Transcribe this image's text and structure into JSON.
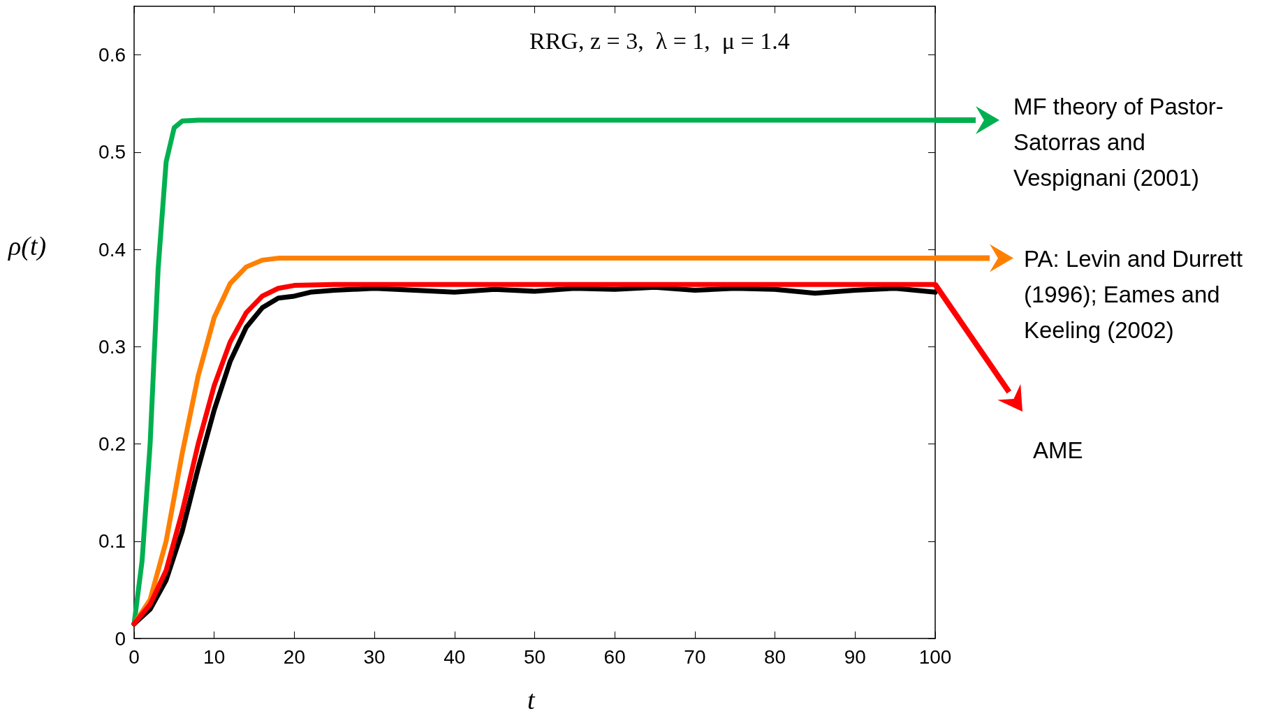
{
  "chart_data": {
    "type": "line",
    "xlabel": "t",
    "ylabel": "ρ(t)",
    "annotations": [
      "RRG, z = 3,  λ = 1,  μ = 1.4"
    ],
    "xlim": [
      0,
      100
    ],
    "xticks": [
      0,
      10,
      20,
      30,
      40,
      50,
      60,
      70,
      80,
      90,
      100
    ],
    "ylim": [
      0,
      0.65
    ],
    "yticks": [
      0,
      0.1,
      0.2,
      0.3,
      0.4,
      0.5,
      0.6
    ],
    "grid": false,
    "legend": "right",
    "marker": "none",
    "line_style": "solid",
    "series": [
      {
        "name": "MF theory of Pastor-Satorras and Vespignani  (2001)",
        "color": "#00b050",
        "x": [
          0,
          1,
          2,
          3,
          4,
          5,
          6,
          8,
          100
        ],
        "values": [
          0.015,
          0.08,
          0.2,
          0.38,
          0.49,
          0.525,
          0.532,
          0.533,
          0.533
        ]
      },
      {
        "name": "PA: Levin and Durrett (1996); Eames and Keeling  (2002)",
        "color": "#ff8000",
        "x": [
          0,
          2,
          4,
          6,
          8,
          10,
          12,
          14,
          16,
          18,
          100
        ],
        "values": [
          0.015,
          0.04,
          0.1,
          0.19,
          0.27,
          0.33,
          0.365,
          0.382,
          0.389,
          0.391,
          0.391
        ]
      },
      {
        "color": "#000000",
        "x": [
          0,
          2,
          4,
          6,
          8,
          10,
          12,
          14,
          16,
          18,
          20,
          22,
          25,
          30,
          35,
          40,
          45,
          50,
          55,
          60,
          65,
          70,
          75,
          80,
          85,
          90,
          95,
          100
        ],
        "values": [
          0.015,
          0.03,
          0.06,
          0.11,
          0.175,
          0.235,
          0.285,
          0.32,
          0.34,
          0.35,
          0.352,
          0.356,
          0.358,
          0.36,
          0.358,
          0.356,
          0.359,
          0.357,
          0.36,
          0.359,
          0.361,
          0.358,
          0.36,
          0.359,
          0.355,
          0.358,
          0.36,
          0.356
        ]
      },
      {
        "name": "AME",
        "color": "#ff0000",
        "x": [
          0,
          2,
          4,
          6,
          8,
          10,
          12,
          14,
          16,
          18,
          20,
          25,
          100
        ],
        "values": [
          0.015,
          0.035,
          0.07,
          0.13,
          0.2,
          0.26,
          0.305,
          0.335,
          0.352,
          0.36,
          0.363,
          0.364,
          0.364
        ]
      }
    ]
  }
}
